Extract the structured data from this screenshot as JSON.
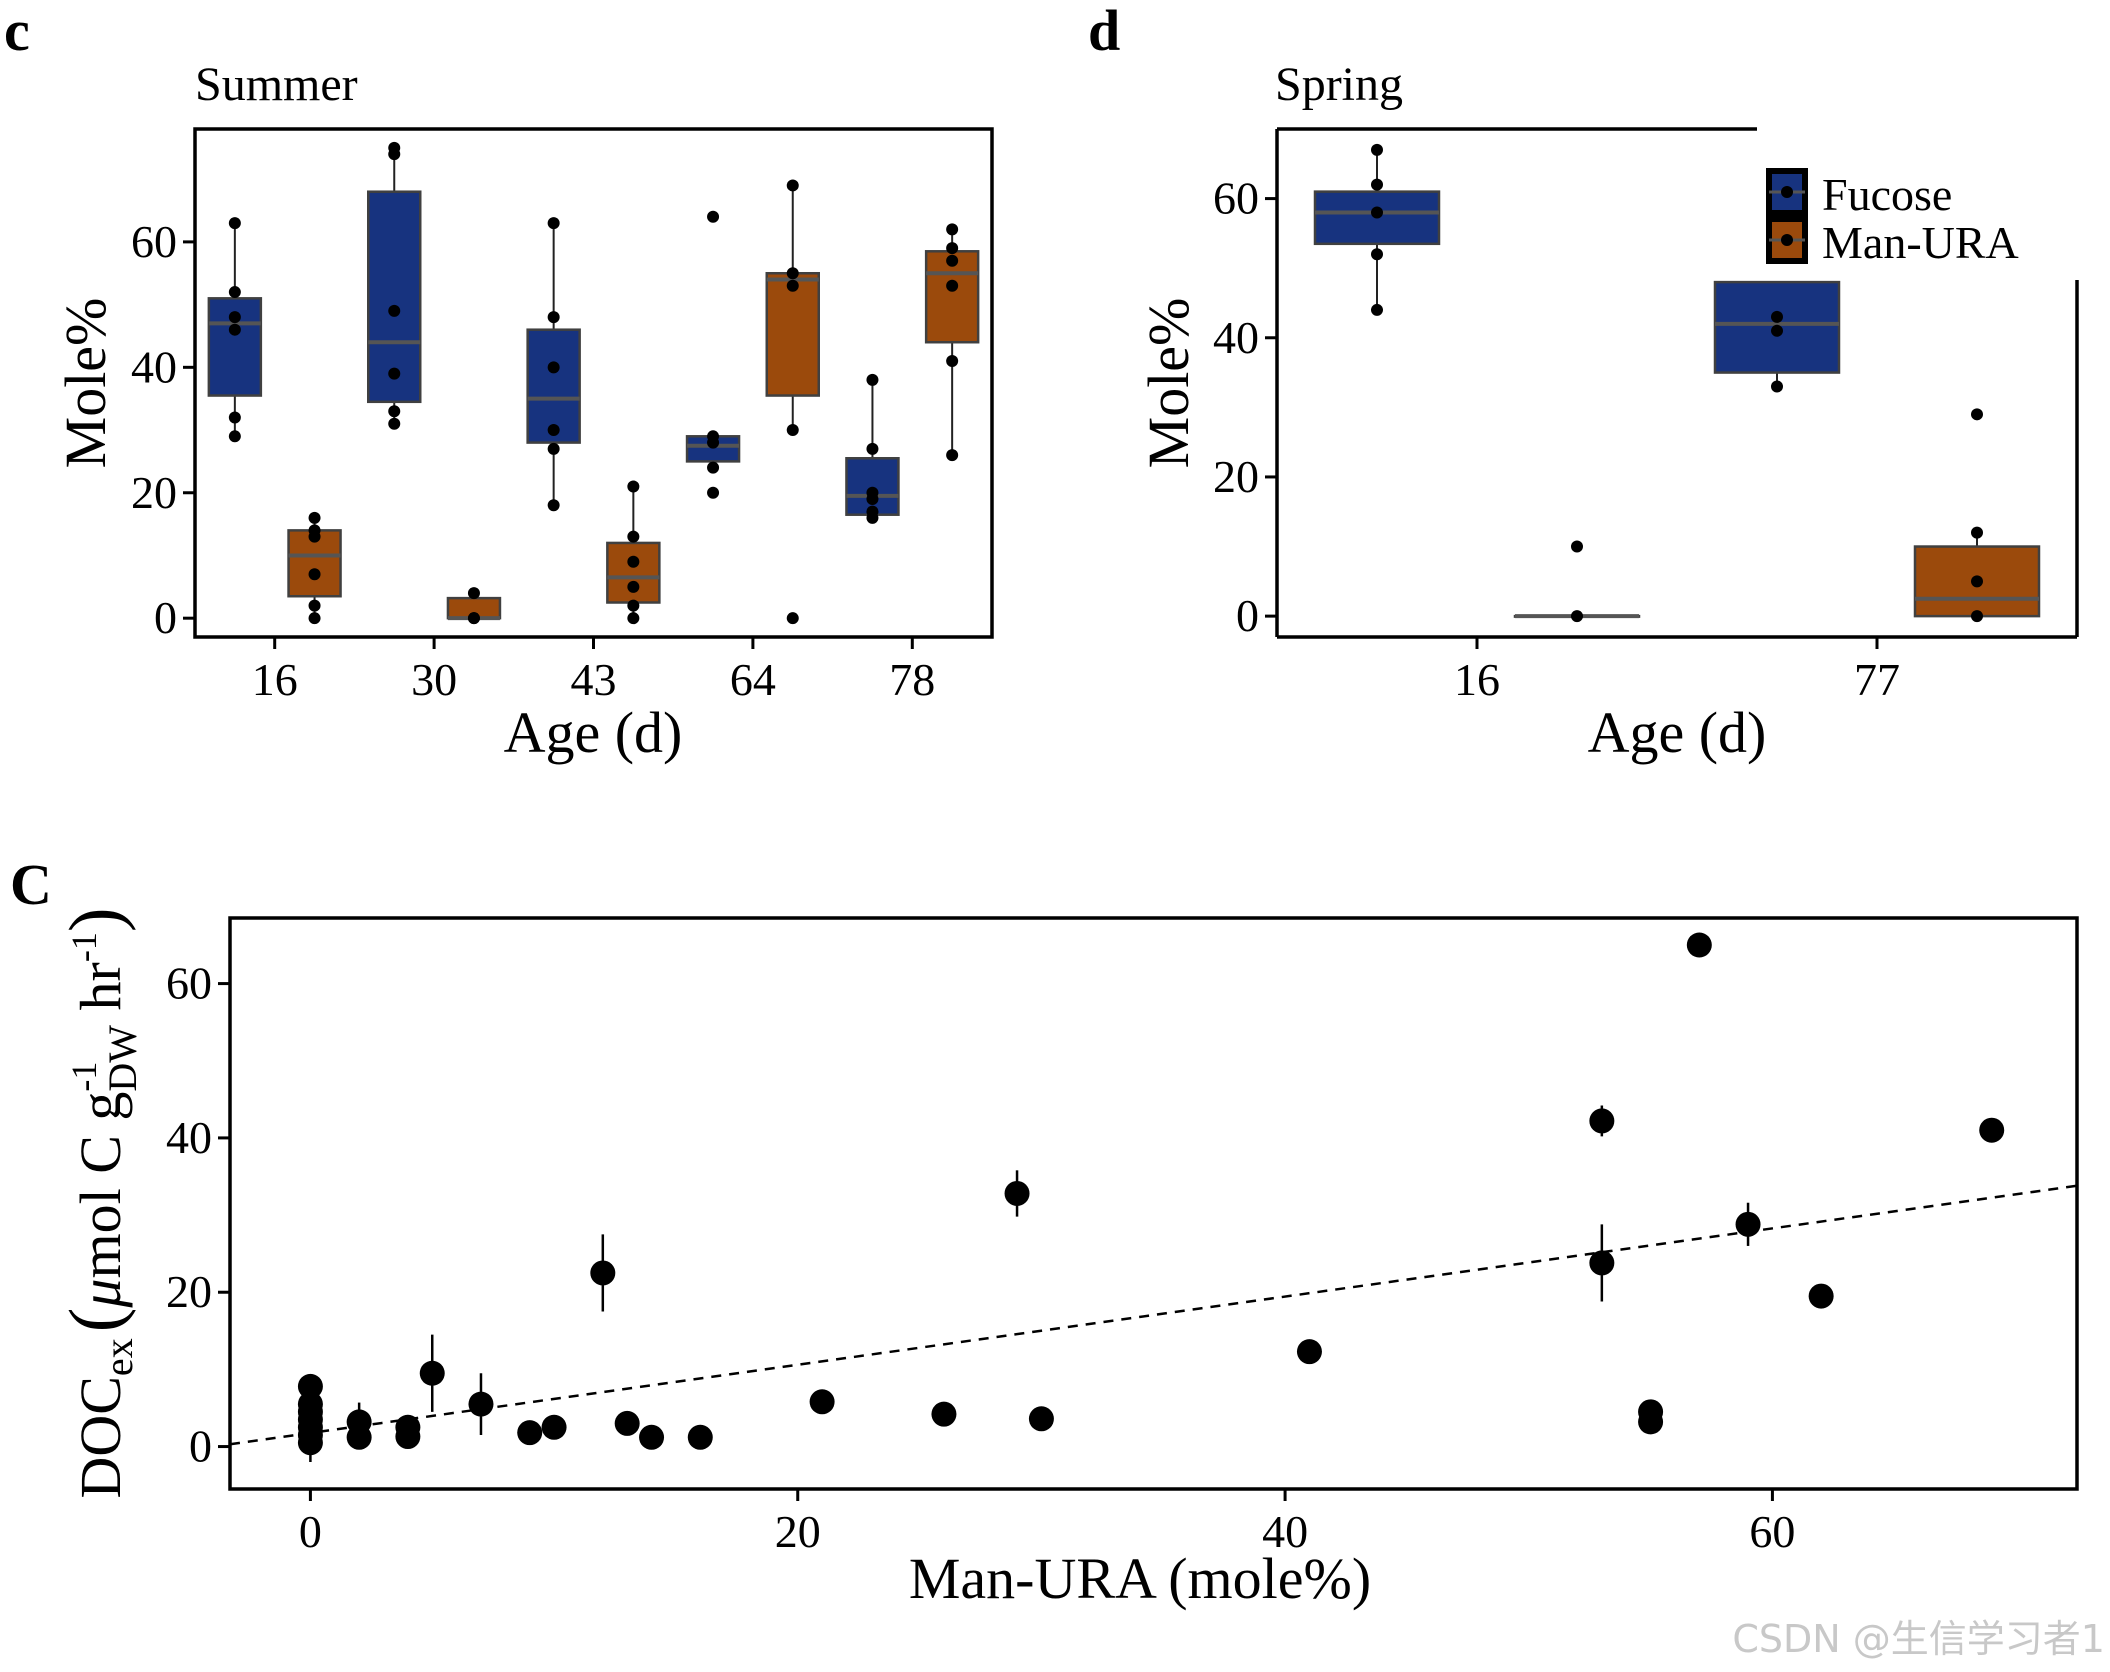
{
  "colors": {
    "fucose": "#17337F",
    "man_ura": "#9B4A0C",
    "median": "#555555",
    "box_outline": "#404040",
    "point": "#000000",
    "axis": "#000000"
  },
  "watermark": "CSDN @生信学习者1",
  "chart_data": [
    {
      "id": "panel-c",
      "panel_label": "c",
      "type": "box",
      "title": "Summer",
      "xlabel": "Age (d)",
      "ylabel": "Mole%",
      "categories": [
        "16",
        "30",
        "43",
        "64",
        "78"
      ],
      "ylim": [
        -3,
        78
      ],
      "yticks": [
        0,
        20,
        40,
        60
      ],
      "series": [
        {
          "name": "Fucose",
          "color": "#17337F",
          "boxes": [
            {
              "q1": 35.5,
              "median": 47,
              "q3": 51,
              "whisker_low": 29,
              "whisker_high": 63,
              "points": [
                63,
                52,
                48,
                46,
                32,
                29
              ]
            },
            {
              "q1": 34.5,
              "median": 44,
              "q3": 68,
              "whisker_low": 31,
              "whisker_high": 75,
              "points": [
                75,
                74,
                49,
                39,
                33,
                31
              ]
            },
            {
              "q1": 28,
              "median": 35,
              "q3": 46,
              "whisker_low": 18,
              "whisker_high": 63,
              "points": [
                63,
                48,
                40,
                30,
                27,
                18
              ]
            },
            {
              "q1": 25,
              "median": 27.5,
              "q3": 29,
              "whisker_low": 25,
              "whisker_high": 29,
              "points": [
                64,
                29,
                28,
                24,
                20
              ]
            },
            {
              "q1": 16.5,
              "median": 19.5,
              "q3": 25.5,
              "whisker_low": 16,
              "whisker_high": 38,
              "points": [
                38,
                27,
                20,
                19,
                17,
                16
              ]
            }
          ]
        },
        {
          "name": "Man-URA",
          "color": "#9B4A0C",
          "boxes": [
            {
              "q1": 3.5,
              "median": 10,
              "q3": 14,
              "whisker_low": 0,
              "whisker_high": 16,
              "points": [
                16,
                14,
                13,
                7,
                2,
                0
              ]
            },
            {
              "q1": 0,
              "median": 0,
              "q3": 3.2,
              "whisker_low": 0,
              "whisker_high": 4,
              "points": [
                4,
                0,
                0
              ]
            },
            {
              "q1": 2.5,
              "median": 6.5,
              "q3": 12,
              "whisker_low": 0,
              "whisker_high": 21,
              "points": [
                21,
                13,
                9,
                5,
                2,
                0
              ]
            },
            {
              "q1": 35.5,
              "median": 54,
              "q3": 55,
              "whisker_low": 30,
              "whisker_high": 69,
              "points": [
                69,
                55,
                53,
                30,
                0
              ]
            },
            {
              "q1": 44,
              "median": 55,
              "q3": 58.5,
              "whisker_low": 26,
              "whisker_high": 62,
              "points": [
                62,
                59,
                57,
                53,
                41,
                26
              ]
            }
          ]
        }
      ]
    },
    {
      "id": "panel-d",
      "panel_label": "d",
      "type": "box",
      "title": "Spring",
      "xlabel": "Age (d)",
      "ylabel": "Mole%",
      "categories": [
        "16",
        "77"
      ],
      "ylim": [
        -3,
        70
      ],
      "yticks": [
        0,
        20,
        40,
        60
      ],
      "legend": {
        "position": "top-right",
        "entries": [
          "Fucose",
          "Man-URA"
        ]
      },
      "series": [
        {
          "name": "Fucose",
          "color": "#17337F",
          "boxes": [
            {
              "q1": 53.5,
              "median": 58,
              "q3": 61,
              "whisker_low": 44,
              "whisker_high": 67,
              "points": [
                67,
                62,
                58,
                52,
                44
              ]
            },
            {
              "q1": 35,
              "median": 42,
              "q3": 48,
              "whisker_low": 33,
              "whisker_high": 48,
              "points": [
                43,
                41,
                33
              ]
            }
          ]
        },
        {
          "name": "Man-URA",
          "color": "#9B4A0C",
          "boxes": [
            {
              "q1": 0,
              "median": 0,
              "q3": 0,
              "whisker_low": 0,
              "whisker_high": 0,
              "points": [
                10,
                0
              ]
            },
            {
              "q1": 0,
              "median": 2.5,
              "q3": 10,
              "whisker_low": 0,
              "whisker_high": 12,
              "points": [
                29,
                12,
                5,
                0
              ]
            }
          ]
        }
      ]
    },
    {
      "id": "panel-C",
      "panel_label": "C",
      "type": "scatter",
      "title": "",
      "xlabel": "Man-URA (mole%)",
      "ylabel_main": "DOC",
      "ylabel_sub": "ex",
      "ylabel_paren_open": "(",
      "ylabel_mu": "μ",
      "ylabel_mid": "mol C g",
      "ylabel_sup1": "-1",
      "ylabel_sub2": "DW",
      "ylabel_hr": " hr",
      "ylabel_sup2": "-1",
      "ylabel_paren_close": ")",
      "xlim": [
        -3.3,
        72.5
      ],
      "ylim": [
        -5.5,
        68.5
      ],
      "xticks": [
        0,
        20,
        40,
        60
      ],
      "yticks": [
        0,
        20,
        40,
        60
      ],
      "trendline": {
        "style": "dashed",
        "x0": -3.3,
        "y0": 0.3,
        "x1": 72.5,
        "y1": 33.8
      },
      "points": [
        {
          "x": 0,
          "y": 0.5,
          "err": 2.5
        },
        {
          "x": 0,
          "y": 1.5,
          "err": 0
        },
        {
          "x": 0,
          "y": 2.5,
          "err": 0
        },
        {
          "x": 0,
          "y": 3.5,
          "err": 0
        },
        {
          "x": 0,
          "y": 4.5,
          "err": 0
        },
        {
          "x": 0,
          "y": 5.5,
          "err": 0
        },
        {
          "x": 0,
          "y": 7.8,
          "err": 0
        },
        {
          "x": 2,
          "y": 1.2,
          "err": 0
        },
        {
          "x": 2,
          "y": 3.2,
          "err": 2.5
        },
        {
          "x": 4,
          "y": 1.3,
          "err": 0
        },
        {
          "x": 4,
          "y": 2.5,
          "err": 0
        },
        {
          "x": 5,
          "y": 9.5,
          "err": 5
        },
        {
          "x": 7,
          "y": 5.5,
          "err": 4
        },
        {
          "x": 9,
          "y": 1.8,
          "err": 0
        },
        {
          "x": 10,
          "y": 2.5,
          "err": 0
        },
        {
          "x": 12,
          "y": 22.5,
          "err": 5
        },
        {
          "x": 13,
          "y": 3,
          "err": 1.5
        },
        {
          "x": 14,
          "y": 1.2,
          "err": 0
        },
        {
          "x": 16,
          "y": 1.2,
          "err": 0
        },
        {
          "x": 21,
          "y": 5.8,
          "err": 0
        },
        {
          "x": 26,
          "y": 4.2,
          "err": 0
        },
        {
          "x": 29,
          "y": 32.8,
          "err": 3
        },
        {
          "x": 30,
          "y": 3.6,
          "err": 0
        },
        {
          "x": 41,
          "y": 12.3,
          "err": 0
        },
        {
          "x": 53,
          "y": 42.2,
          "err": 2
        },
        {
          "x": 53,
          "y": 23.8,
          "err": 5
        },
        {
          "x": 55,
          "y": 4.5,
          "err": 0
        },
        {
          "x": 55,
          "y": 3.2,
          "err": 0
        },
        {
          "x": 57,
          "y": 65,
          "err": 0
        },
        {
          "x": 59,
          "y": 28.8,
          "err": 2.8
        },
        {
          "x": 62,
          "y": 19.5,
          "err": 0
        },
        {
          "x": 69,
          "y": 41,
          "err": 0
        }
      ]
    }
  ]
}
